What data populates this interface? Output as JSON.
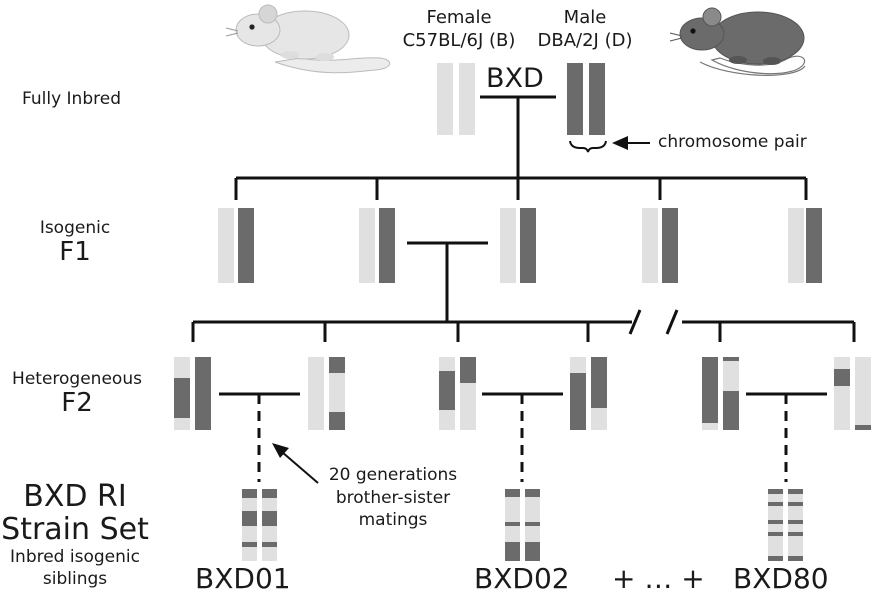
{
  "colors": {
    "B": "#e0e0e0",
    "D": "#6b6b6b",
    "line": "#111111",
    "bg": "#ffffff"
  },
  "parents": {
    "female": {
      "sex": "Female",
      "strain": "C57BL/6J (B)",
      "icon": "white-mouse-icon"
    },
    "male": {
      "sex": "Male",
      "strain": "DBA/2J (D)",
      "icon": "dark-mouse-icon"
    },
    "cross_label": "BXD",
    "chromosome_pair_label": "chromosome pair"
  },
  "rows": {
    "fully_inbred": "Fully Inbred",
    "f1_line1": "Isogenic",
    "f1_line2": "F1",
    "f2_line1": "Heterogeneous",
    "f2_line2": "F2",
    "ri_line1": "BXD RI",
    "ri_line2": "Strain Set",
    "ri_line3": "Inbred isogenic",
    "ri_line4": "siblings"
  },
  "annotations": {
    "generations_line1": "20 generations",
    "generations_line2": "brother-sister",
    "generations_line3": "matings"
  },
  "strains": {
    "first": "BXD01",
    "second": "BXD02",
    "plus_dots": "+ … +",
    "last": "BXD80"
  }
}
